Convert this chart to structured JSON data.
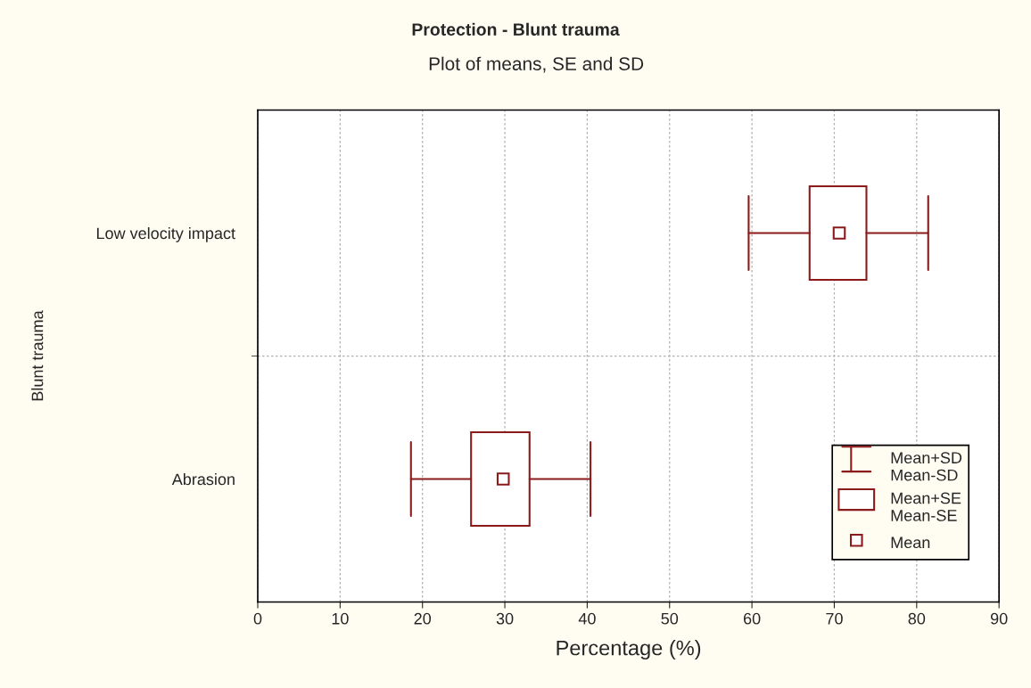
{
  "chart_data": {
    "type": "box",
    "orientation": "horizontal",
    "title": "Protection - Blunt trauma",
    "subtitle": "Plot of means, SE and SD",
    "xlabel": "Percentage (%)",
    "ylabel": "Blunt trauma",
    "categories": [
      "Low velocity impact",
      "Abrasion"
    ],
    "color": "#8b1a1a",
    "boxes": [
      {
        "low": 59.6,
        "q1": 67.0,
        "q3": 73.9,
        "high": 81.4,
        "mean": 70.6
      },
      {
        "low": 18.6,
        "q1": 25.9,
        "q3": 33.0,
        "high": 40.4,
        "mean": 29.8
      }
    ],
    "annotations": [
      "Mean+SD\nMean-SD",
      "Mean+SE\nMean-SE",
      "Mean"
    ],
    "marker": "square",
    "xlim": [
      0,
      90
    ],
    "xticks": [
      0,
      10,
      20,
      30,
      40,
      50,
      60,
      70,
      80,
      90
    ],
    "grid": true
  }
}
